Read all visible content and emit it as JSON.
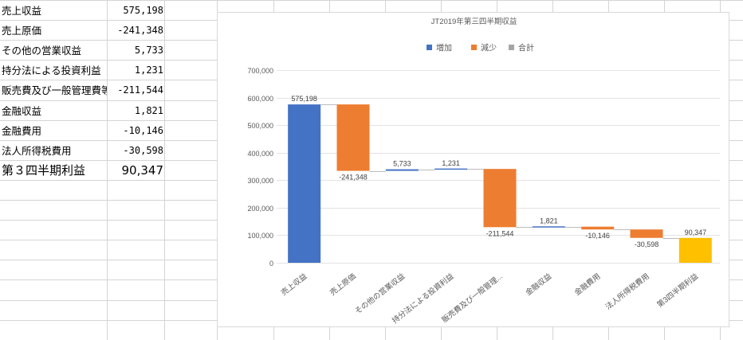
{
  "sheet": {
    "rows": [
      {
        "label": "売上収益",
        "value": "575,198"
      },
      {
        "label": "売上原価",
        "value": "-241,348"
      },
      {
        "label": "その他の営業収益",
        "value": "5,733"
      },
      {
        "label": "持分法による投資利益",
        "value": "1,231"
      },
      {
        "label": "販売費及び一般管理費等",
        "value": "-211,544"
      },
      {
        "label": "金融収益",
        "value": "1,821"
      },
      {
        "label": "金融費用",
        "value": "-10,146"
      },
      {
        "label": "法人所得税費用",
        "value": "-30,598"
      },
      {
        "label": "第３四半期利益",
        "value": "90,347"
      }
    ]
  },
  "colors": {
    "increase": "#4472C4",
    "decrease": "#ED7D31",
    "total": "#FFC000",
    "total_legend": "#A5A5A5"
  },
  "chart_data": {
    "type": "waterfall",
    "title": "JT2019年第三四半期収益",
    "legend": {
      "position": "top",
      "items": [
        {
          "name": "増加",
          "key": "increase"
        },
        {
          "name": "減少",
          "key": "decrease"
        },
        {
          "name": "合計",
          "key": "total"
        }
      ]
    },
    "categories": [
      "売上収益",
      "売上原価",
      "その他の営業収益",
      "持分法による投資利益",
      "販売費及び一般管理...",
      "金融収益",
      "金融費用",
      "法人所得税費用",
      "第3四半期利益"
    ],
    "values": [
      575198,
      -241348,
      5733,
      1231,
      -211544,
      1821,
      -10146,
      -30598,
      90347
    ],
    "value_labels": [
      "575,198",
      "-241,348",
      "5,733",
      "1,231",
      "-211,544",
      "1,821",
      "-10,146",
      "-30,598",
      "90,347"
    ],
    "total_index": [
      8
    ],
    "ylim": [
      0,
      700000
    ],
    "ytick_labels": [
      "0",
      "100,000",
      "200,000",
      "300,000",
      "400,000",
      "500,000",
      "600,000",
      "700,000"
    ],
    "grid": true
  }
}
